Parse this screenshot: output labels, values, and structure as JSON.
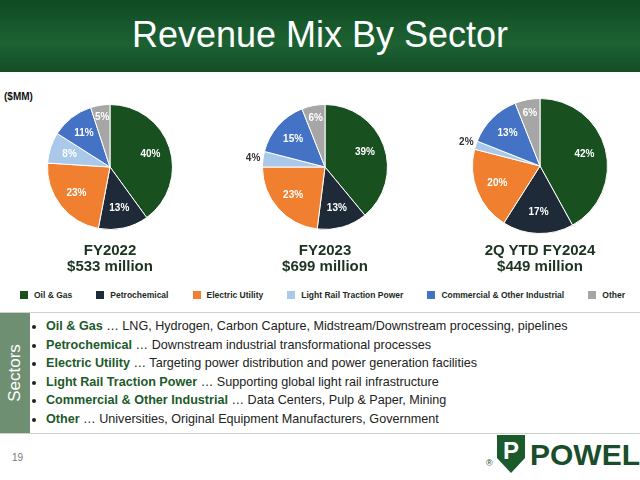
{
  "header": {
    "title": "Revenue Mix By Sector"
  },
  "unit_note": "($MM)",
  "chart_data": [
    {
      "type": "pie",
      "title": "FY2022",
      "subtitle": "$533 million",
      "categories": [
        "Oil & Gas",
        "Petrochemical",
        "Electric Utility",
        "Light Rail Traction Power",
        "Commercial & Other Industrial",
        "Other"
      ],
      "values": [
        40,
        13,
        23,
        8,
        11,
        5
      ],
      "value_labels": [
        "40%",
        "13%",
        "23%",
        "8%",
        "11%",
        "5%"
      ],
      "colors": [
        "#19501f",
        "#1f2a38",
        "#f07f2f",
        "#a9c8ea",
        "#4472c4",
        "#a6a6a6"
      ],
      "data_labels": true
    },
    {
      "type": "pie",
      "title": "FY2023",
      "subtitle": "$699 million",
      "categories": [
        "Oil & Gas",
        "Petrochemical",
        "Electric Utility",
        "Light Rail Traction Power",
        "Commercial & Other Industrial",
        "Other"
      ],
      "values": [
        39,
        13,
        23,
        4,
        15,
        6
      ],
      "value_labels": [
        "39%",
        "13%",
        "23%",
        "4%",
        "15%",
        "6%"
      ],
      "colors": [
        "#19501f",
        "#1f2a38",
        "#f07f2f",
        "#a9c8ea",
        "#4472c4",
        "#a6a6a6"
      ],
      "data_labels": true
    },
    {
      "type": "pie",
      "title": "2Q YTD FY2024",
      "subtitle": "$449 million",
      "categories": [
        "Oil & Gas",
        "Petrochemical",
        "Electric Utility",
        "Light Rail Traction Power",
        "Commercial & Other Industrial",
        "Other"
      ],
      "values": [
        42,
        17,
        20,
        2,
        13,
        6
      ],
      "value_labels": [
        "42%",
        "17%",
        "20%",
        "2%",
        "13%",
        "6%"
      ],
      "colors": [
        "#19501f",
        "#1f2a38",
        "#f07f2f",
        "#a9c8ea",
        "#4472c4",
        "#a6a6a6"
      ],
      "data_labels": true
    }
  ],
  "sectors": {
    "label": "Sectors",
    "items": [
      {
        "name": "Oil & Gas",
        "description": " … LNG, Hydrogen, Carbon Capture, Midstream/Downstream processing, pipelines"
      },
      {
        "name": "Petrochemical",
        "description": " … Downstream industrial transformational processes"
      },
      {
        "name": "Electric Utility",
        "description": " … Targeting power distribution and power generation facilities"
      },
      {
        "name": "Light Rail Traction Power",
        "description": " … Supporting global light rail infrastructure"
      },
      {
        "name": "Commercial & Other Industrial",
        "description": " … Data Centers, Pulp & Paper, Mining"
      },
      {
        "name": "Other",
        "description": " … Universities, Original Equipment Manufacturers, Government"
      }
    ]
  },
  "page_number": "19",
  "logo": {
    "mark": "P",
    "name": "POWELL",
    "registered": "®"
  }
}
